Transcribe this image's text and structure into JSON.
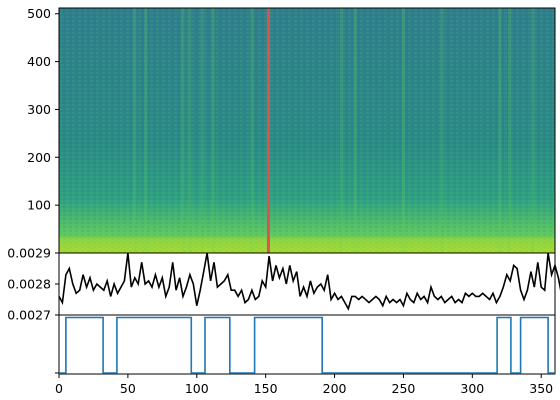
{
  "chart_data": [
    {
      "type": "heatmap",
      "x_range": [
        0,
        360
      ],
      "y_range": [
        0,
        512
      ],
      "yticks": [
        "100",
        "200",
        "300",
        "400",
        "500"
      ],
      "marker_x": 152,
      "marker_color": "#d9534f",
      "colormap": [
        "#440154",
        "#3b528b",
        "#21918c",
        "#5ec962",
        "#fde725"
      ],
      "bright_columns": [
        55,
        63,
        90,
        95,
        104,
        112,
        140,
        152,
        205,
        215,
        250,
        278,
        320,
        327,
        344
      ]
    },
    {
      "type": "line",
      "ylim": [
        0.0027,
        0.0029
      ],
      "yticks": [
        "0.0027",
        "0.0028",
        "0.0029"
      ],
      "line_color": "#000000",
      "values": [
        0.00276,
        0.00274,
        0.00283,
        0.00285,
        0.0028,
        0.00277,
        0.00278,
        0.00283,
        0.00279,
        0.00282,
        0.00278,
        0.0028,
        0.00279,
        0.00278,
        0.00281,
        0.00276,
        0.0028,
        0.00277,
        0.00279,
        0.00281,
        0.0029,
        0.00279,
        0.00282,
        0.0028,
        0.00287,
        0.0028,
        0.00281,
        0.00279,
        0.00283,
        0.00279,
        0.00282,
        0.00276,
        0.00279,
        0.00287,
        0.00278,
        0.00282,
        0.00276,
        0.00279,
        0.00283,
        0.0028,
        0.00273,
        0.00278,
        0.00284,
        0.0029,
        0.00281,
        0.00287,
        0.00279,
        0.0028,
        0.00281,
        0.00283,
        0.00278,
        0.00278,
        0.00276,
        0.00278,
        0.00274,
        0.00275,
        0.00278,
        0.00275,
        0.00276,
        0.00281,
        0.00279,
        0.00289,
        0.00281,
        0.00286,
        0.00282,
        0.00285,
        0.0028,
        0.00286,
        0.00281,
        0.00284,
        0.00276,
        0.00279,
        0.00276,
        0.00281,
        0.00277,
        0.00279,
        0.0028,
        0.00278,
        0.00283,
        0.00275,
        0.00277,
        0.00275,
        0.00276,
        0.00274,
        0.00272,
        0.00276,
        0.00276,
        0.00275,
        0.00276,
        0.00275,
        0.00274,
        0.00275,
        0.00276,
        0.00275,
        0.00273,
        0.00276,
        0.00274,
        0.00275,
        0.00274,
        0.00275,
        0.00273,
        0.00277,
        0.00275,
        0.00274,
        0.00277,
        0.00275,
        0.00276,
        0.00274,
        0.00279,
        0.00276,
        0.00275,
        0.00276,
        0.00274,
        0.00275,
        0.00276,
        0.00274,
        0.00275,
        0.00274,
        0.00277,
        0.00276,
        0.00277,
        0.00276,
        0.00276,
        0.00277,
        0.00276,
        0.00275,
        0.00277,
        0.00274,
        0.00276,
        0.00279,
        0.00283,
        0.00281,
        0.00286,
        0.00285,
        0.00278,
        0.00275,
        0.00278,
        0.00284,
        0.00279,
        0.00287,
        0.00279,
        0.00278,
        0.0029,
        0.00283,
        0.00286,
        0.00282,
        0.00276,
        0.00278
      ],
      "x_step": 2.5
    },
    {
      "type": "line",
      "line_color": "#1f77b4",
      "y_levels": [
        0,
        1
      ],
      "steps": [
        {
          "x": 0,
          "y": 0
        },
        {
          "x": 5,
          "y": 1
        },
        {
          "x": 32,
          "y": 0
        },
        {
          "x": 42,
          "y": 1
        },
        {
          "x": 96,
          "y": 0
        },
        {
          "x": 106,
          "y": 1
        },
        {
          "x": 124,
          "y": 0
        },
        {
          "x": 142,
          "y": 1
        },
        {
          "x": 191,
          "y": 0
        },
        {
          "x": 318,
          "y": 1
        },
        {
          "x": 328,
          "y": 0
        },
        {
          "x": 335,
          "y": 1
        },
        {
          "x": 355,
          "y": 0
        },
        {
          "x": 360,
          "y": 0
        }
      ],
      "xticks": [
        "0",
        "50",
        "100",
        "150",
        "200",
        "250",
        "300",
        "350"
      ],
      "xlim": [
        0,
        360
      ]
    }
  ]
}
